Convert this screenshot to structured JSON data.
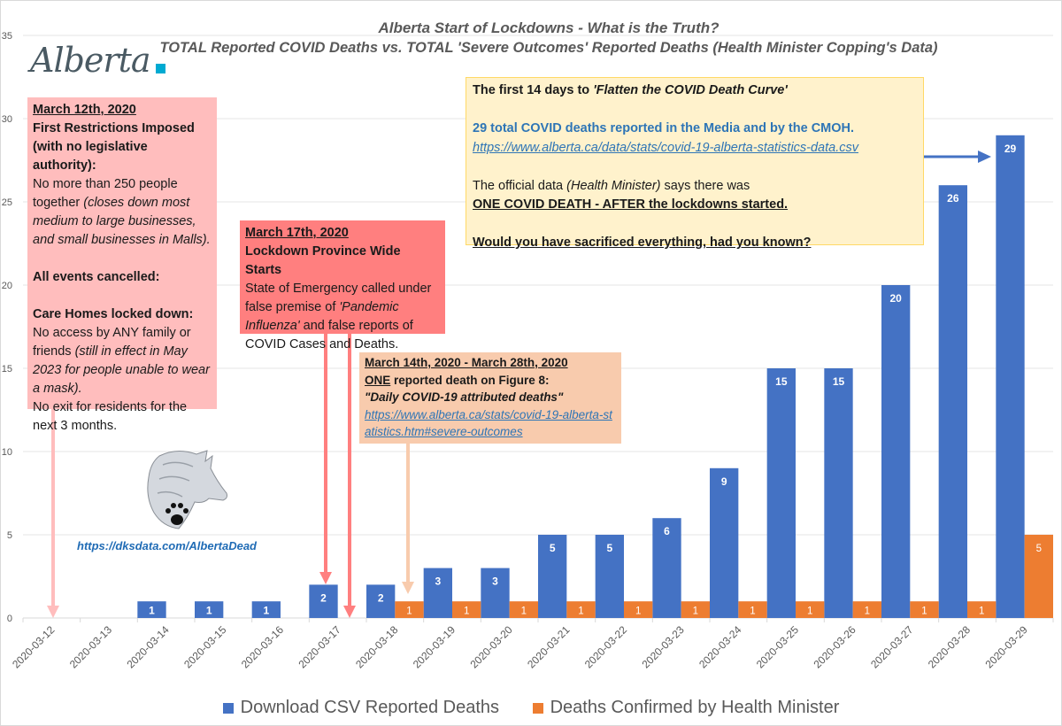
{
  "title_line1": "Alberta Start of Lockdowns - What is the Truth?",
  "title_line2": "TOTAL Reported COVID Deaths vs. TOTAL 'Severe Outcomes' Reported Deaths (Health Minister Copping's Data)",
  "logo_text": "Alberta",
  "colors": {
    "series_blue": "#4472c4",
    "series_orange": "#ed7d31",
    "box_march12": "#ffbdbd",
    "box_march17": "#ff7f7f",
    "box_march14_28": "#f8cbad",
    "box_summary": "#fff2cc",
    "arrow_march12": "#ffbdbd",
    "arrow_march17": "#ff7f7f",
    "arrow_march14": "#f8cbad",
    "arrow_summary": "#4472c4"
  },
  "annotations": {
    "march12": {
      "date": "March 12th, 2020",
      "heading1": "First Restrictions Imposed",
      "heading2": "(with no legislative authority):",
      "text1": "No more than 250 people together ",
      "text1_italic": "(closes down most medium to large businesses, and small businesses in Malls).",
      "events": "All events cancelled:",
      "care_heading": "Care Homes locked down:",
      "care_text": "No access by ANY family or friends ",
      "care_italic": "(still in effect in May 2023 for people unable to wear a mask).",
      "exit_text": "No exit for residents for the next 3 months."
    },
    "march17": {
      "date": "March 17th, 2020",
      "heading": "Lockdown Province Wide Starts",
      "text1": "State of Emergency called under false premise of ",
      "text1_italic": "'Pandemic Influenza'",
      "text2": " and false reports of COVID Cases and Deaths."
    },
    "march14_28": {
      "date": "March 14th, 2020 - March 28th, 2020",
      "one": "ONE",
      "text1": " reported death on Figure 8:",
      "quote": "\"Daily COVID-19 attributed deaths\"",
      "link": "https://www.alberta.ca/stats/covid-19-alberta-statistics.htm#severe-outcomes"
    },
    "summary": {
      "line1": "The first 14 days to ",
      "line1_italic": "'Flatten the COVID Death Curve'",
      "line2": "29 total COVID deaths reported in the Media and by the CMOH.",
      "link": "https://www.alberta.ca/data/stats/covid-19-alberta-statistics-data.csv",
      "line3a": "The official data ",
      "line3_italic": "(Health Minister)",
      "line3b": " says there was",
      "line4": "ONE COVID DEATH - AFTER the lockdowns started.",
      "line5": "Would you have sacrificed everything, had you known?"
    },
    "watermark_link": "https://dksdata.com/AlbertaDead"
  },
  "chart_data": {
    "type": "bar",
    "title": "Alberta Start of Lockdowns - What is the Truth?",
    "subtitle": "TOTAL Reported COVID Deaths vs. TOTAL 'Severe Outcomes' Reported Deaths (Health Minister Copping's Data)",
    "xlabel": "",
    "ylabel": "",
    "ylim": [
      0,
      35
    ],
    "yticks": [
      0,
      5,
      10,
      15,
      20,
      25,
      30,
      35
    ],
    "grid": true,
    "legend_position": "bottom",
    "categories": [
      "2020-03-12",
      "2020-03-13",
      "2020-03-14",
      "2020-03-15",
      "2020-03-16",
      "2020-03-17",
      "2020-03-18",
      "2020-03-19",
      "2020-03-20",
      "2020-03-21",
      "2020-03-22",
      "2020-03-23",
      "2020-03-24",
      "2020-03-25",
      "2020-03-26",
      "2020-03-27",
      "2020-03-28",
      "2020-03-29"
    ],
    "series": [
      {
        "name": "Download CSV Reported Deaths",
        "color": "#4472c4",
        "values": [
          0,
          0,
          1,
          1,
          1,
          2,
          2,
          3,
          3,
          5,
          5,
          6,
          9,
          15,
          15,
          20,
          26,
          29
        ]
      },
      {
        "name": "Deaths Confirmed by Health Minister",
        "color": "#ed7d31",
        "values": [
          0,
          0,
          0,
          0,
          0,
          0,
          1,
          1,
          1,
          1,
          1,
          1,
          1,
          1,
          1,
          1,
          1,
          5
        ]
      }
    ]
  }
}
